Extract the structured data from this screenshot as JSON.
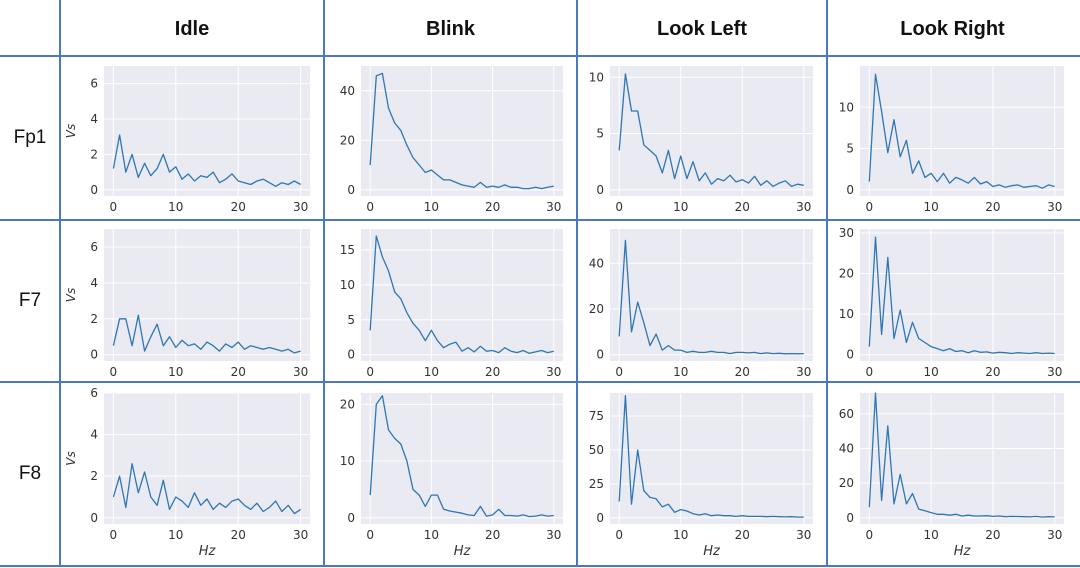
{
  "columns": [
    "Idle",
    "Blink",
    "Look Left",
    "Look Right"
  ],
  "rows": [
    "Fp1",
    "F7",
    "F8"
  ],
  "chart_data": [
    {
      "type": "line",
      "row": "Fp1",
      "column": "Idle",
      "ylabel": "Vs",
      "xlabel": "",
      "xlim": [
        0,
        30
      ],
      "ylim": [
        0,
        7
      ],
      "xticks": [
        0,
        10,
        20,
        30
      ],
      "yticks": [
        0,
        2,
        4,
        6
      ],
      "x": [
        0,
        1,
        2,
        3,
        4,
        5,
        6,
        7,
        8,
        9,
        10,
        11,
        12,
        13,
        14,
        15,
        16,
        17,
        18,
        19,
        20,
        21,
        22,
        23,
        24,
        25,
        26,
        27,
        28,
        29,
        30
      ],
      "series": [
        {
          "values": [
            1.2,
            3.1,
            1.0,
            2.0,
            0.7,
            1.5,
            0.8,
            1.2,
            2.0,
            1.0,
            1.3,
            0.6,
            0.9,
            0.5,
            0.8,
            0.7,
            1.0,
            0.4,
            0.6,
            0.9,
            0.5,
            0.4,
            0.3,
            0.5,
            0.6,
            0.4,
            0.2,
            0.4,
            0.3,
            0.5,
            0.3
          ]
        }
      ]
    },
    {
      "type": "line",
      "row": "Fp1",
      "column": "Blink",
      "ylabel": "",
      "xlabel": "",
      "xlim": [
        0,
        30
      ],
      "ylim": [
        0,
        50
      ],
      "xticks": [
        0,
        10,
        20,
        30
      ],
      "yticks": [
        0,
        20,
        40
      ],
      "x": [
        0,
        1,
        2,
        3,
        4,
        5,
        6,
        7,
        8,
        9,
        10,
        11,
        12,
        13,
        14,
        15,
        16,
        17,
        18,
        19,
        20,
        21,
        22,
        23,
        24,
        25,
        26,
        27,
        28,
        29,
        30
      ],
      "series": [
        {
          "values": [
            10,
            46,
            47,
            33,
            27,
            24,
            18,
            13,
            10,
            7,
            8,
            6,
            4,
            4,
            3,
            2,
            1.5,
            1,
            3,
            1,
            1.5,
            1,
            2,
            1,
            1,
            0.5,
            0.5,
            1,
            0.5,
            1,
            1.5
          ]
        }
      ]
    },
    {
      "type": "line",
      "row": "Fp1",
      "column": "Look Left",
      "ylabel": "",
      "xlabel": "",
      "xlim": [
        0,
        30
      ],
      "ylim": [
        0,
        11
      ],
      "xticks": [
        0,
        10,
        20,
        30
      ],
      "yticks": [
        0,
        5,
        10
      ],
      "x": [
        0,
        1,
        2,
        3,
        4,
        5,
        6,
        7,
        8,
        9,
        10,
        11,
        12,
        13,
        14,
        15,
        16,
        17,
        18,
        19,
        20,
        21,
        22,
        23,
        24,
        25,
        26,
        27,
        28,
        29,
        30
      ],
      "series": [
        {
          "values": [
            3.5,
            10.3,
            7.0,
            7.0,
            4.0,
            3.5,
            3.0,
            1.5,
            3.5,
            1.0,
            3.0,
            1.0,
            2.5,
            0.8,
            1.5,
            0.5,
            1.0,
            0.8,
            1.3,
            0.7,
            0.9,
            0.6,
            1.2,
            0.4,
            0.8,
            0.3,
            0.6,
            0.8,
            0.3,
            0.5,
            0.4
          ]
        }
      ]
    },
    {
      "type": "line",
      "row": "Fp1",
      "column": "Look Right",
      "ylabel": "",
      "xlabel": "",
      "xlim": [
        0,
        30
      ],
      "ylim": [
        0,
        15
      ],
      "xticks": [
        0,
        10,
        20,
        30
      ],
      "yticks": [
        0,
        5,
        10
      ],
      "x": [
        0,
        1,
        2,
        3,
        4,
        5,
        6,
        7,
        8,
        9,
        10,
        11,
        12,
        13,
        14,
        15,
        16,
        17,
        18,
        19,
        20,
        21,
        22,
        23,
        24,
        25,
        26,
        27,
        28,
        29,
        30
      ],
      "series": [
        {
          "values": [
            1.0,
            14.0,
            9.5,
            4.5,
            8.5,
            4.0,
            6.0,
            2.0,
            3.5,
            1.5,
            2.0,
            1.0,
            2.0,
            0.8,
            1.5,
            1.2,
            0.8,
            1.5,
            0.7,
            1.0,
            0.4,
            0.6,
            0.3,
            0.5,
            0.6,
            0.3,
            0.4,
            0.5,
            0.2,
            0.6,
            0.4
          ]
        }
      ]
    },
    {
      "type": "line",
      "row": "F7",
      "column": "Idle",
      "ylabel": "Vs",
      "xlabel": "",
      "xlim": [
        0,
        30
      ],
      "ylim": [
        0,
        7
      ],
      "xticks": [
        0,
        10,
        20,
        30
      ],
      "yticks": [
        0,
        2,
        4,
        6
      ],
      "x": [
        0,
        1,
        2,
        3,
        4,
        5,
        6,
        7,
        8,
        9,
        10,
        11,
        12,
        13,
        14,
        15,
        16,
        17,
        18,
        19,
        20,
        21,
        22,
        23,
        24,
        25,
        26,
        27,
        28,
        29,
        30
      ],
      "series": [
        {
          "values": [
            0.5,
            2.0,
            2.0,
            0.5,
            2.2,
            0.2,
            1.0,
            1.7,
            0.5,
            1.0,
            0.4,
            0.8,
            0.5,
            0.6,
            0.3,
            0.7,
            0.5,
            0.2,
            0.6,
            0.4,
            0.7,
            0.3,
            0.5,
            0.4,
            0.3,
            0.4,
            0.3,
            0.2,
            0.3,
            0.1,
            0.2
          ]
        }
      ]
    },
    {
      "type": "line",
      "row": "F7",
      "column": "Blink",
      "ylabel": "",
      "xlabel": "",
      "xlim": [
        0,
        30
      ],
      "ylim": [
        0,
        18
      ],
      "xticks": [
        0,
        10,
        20,
        30
      ],
      "yticks": [
        0,
        5,
        10,
        15
      ],
      "x": [
        0,
        1,
        2,
        3,
        4,
        5,
        6,
        7,
        8,
        9,
        10,
        11,
        12,
        13,
        14,
        15,
        16,
        17,
        18,
        19,
        20,
        21,
        22,
        23,
        24,
        25,
        26,
        27,
        28,
        29,
        30
      ],
      "series": [
        {
          "values": [
            3.5,
            17.0,
            14.0,
            12.0,
            9.0,
            8.0,
            6.0,
            4.5,
            3.5,
            2.0,
            3.5,
            2.0,
            1.0,
            1.5,
            1.8,
            0.5,
            1.0,
            0.4,
            1.2,
            0.5,
            0.6,
            0.3,
            1.0,
            0.5,
            0.3,
            0.6,
            0.2,
            0.4,
            0.6,
            0.3,
            0.5
          ]
        }
      ]
    },
    {
      "type": "line",
      "row": "F7",
      "column": "Look Left",
      "ylabel": "",
      "xlabel": "",
      "xlim": [
        0,
        30
      ],
      "ylim": [
        0,
        55
      ],
      "xticks": [
        0,
        10,
        20,
        30
      ],
      "yticks": [
        0,
        20,
        40
      ],
      "x": [
        0,
        1,
        2,
        3,
        4,
        5,
        6,
        7,
        8,
        9,
        10,
        11,
        12,
        13,
        14,
        15,
        16,
        17,
        18,
        19,
        20,
        21,
        22,
        23,
        24,
        25,
        26,
        27,
        28,
        29,
        30
      ],
      "series": [
        {
          "values": [
            8,
            50,
            10,
            23,
            14,
            4,
            9,
            2,
            4,
            2,
            2,
            1,
            1.5,
            1,
            1,
            1.5,
            1,
            1,
            0.5,
            1,
            1,
            0.8,
            1,
            0.5,
            0.8,
            0.5,
            0.6,
            0.4,
            0.5,
            0.4,
            0.5
          ]
        }
      ]
    },
    {
      "type": "line",
      "row": "F7",
      "column": "Look Right",
      "ylabel": "",
      "xlabel": "",
      "xlim": [
        0,
        30
      ],
      "ylim": [
        0,
        31
      ],
      "xticks": [
        0,
        10,
        20,
        30
      ],
      "yticks": [
        0,
        10,
        20,
        30
      ],
      "x": [
        0,
        1,
        2,
        3,
        4,
        5,
        6,
        7,
        8,
        9,
        10,
        11,
        12,
        13,
        14,
        15,
        16,
        17,
        18,
        19,
        20,
        21,
        22,
        23,
        24,
        25,
        26,
        27,
        28,
        29,
        30
      ],
      "series": [
        {
          "values": [
            2,
            29,
            5,
            24,
            4,
            11,
            3,
            8,
            4,
            3,
            2,
            1.5,
            1,
            1.5,
            0.8,
            1,
            0.5,
            1,
            0.6,
            0.7,
            0.4,
            0.6,
            0.5,
            0.3,
            0.5,
            0.4,
            0.3,
            0.5,
            0.3,
            0.4,
            0.3
          ]
        }
      ]
    },
    {
      "type": "line",
      "row": "F8",
      "column": "Idle",
      "ylabel": "Vs",
      "xlabel": "Hz",
      "xlim": [
        0,
        30
      ],
      "ylim": [
        0,
        6
      ],
      "xticks": [
        0,
        10,
        20,
        30
      ],
      "yticks": [
        0,
        2,
        4,
        6
      ],
      "x": [
        0,
        1,
        2,
        3,
        4,
        5,
        6,
        7,
        8,
        9,
        10,
        11,
        12,
        13,
        14,
        15,
        16,
        17,
        18,
        19,
        20,
        21,
        22,
        23,
        24,
        25,
        26,
        27,
        28,
        29,
        30
      ],
      "series": [
        {
          "values": [
            1.0,
            2.0,
            0.5,
            2.6,
            1.2,
            2.2,
            1.0,
            0.6,
            1.8,
            0.4,
            1.0,
            0.8,
            0.5,
            1.2,
            0.6,
            0.9,
            0.4,
            0.7,
            0.5,
            0.8,
            0.9,
            0.6,
            0.4,
            0.7,
            0.3,
            0.5,
            0.8,
            0.3,
            0.6,
            0.2,
            0.4
          ]
        }
      ]
    },
    {
      "type": "line",
      "row": "F8",
      "column": "Blink",
      "ylabel": "",
      "xlabel": "Hz",
      "xlim": [
        0,
        30
      ],
      "ylim": [
        0,
        22
      ],
      "xticks": [
        0,
        10,
        20,
        30
      ],
      "yticks": [
        0,
        10,
        20
      ],
      "x": [
        0,
        1,
        2,
        3,
        4,
        5,
        6,
        7,
        8,
        9,
        10,
        11,
        12,
        13,
        14,
        15,
        16,
        17,
        18,
        19,
        20,
        21,
        22,
        23,
        24,
        25,
        26,
        27,
        28,
        29,
        30
      ],
      "series": [
        {
          "values": [
            4,
            20,
            21.5,
            15.5,
            14,
            13,
            10,
            5,
            4,
            2,
            4,
            4,
            1.5,
            1.2,
            1.0,
            0.8,
            0.5,
            0.4,
            2,
            0.3,
            0.5,
            1.5,
            0.4,
            0.4,
            0.3,
            0.5,
            0.2,
            0.3,
            0.5,
            0.3,
            0.4
          ]
        }
      ]
    },
    {
      "type": "line",
      "row": "F8",
      "column": "Look Left",
      "ylabel": "",
      "xlabel": "Hz",
      "xlim": [
        0,
        30
      ],
      "ylim": [
        0,
        92
      ],
      "xticks": [
        0,
        10,
        20,
        30
      ],
      "yticks": [
        0,
        25,
        50,
        75
      ],
      "x": [
        0,
        1,
        2,
        3,
        4,
        5,
        6,
        7,
        8,
        9,
        10,
        11,
        12,
        13,
        14,
        15,
        16,
        17,
        18,
        19,
        20,
        21,
        22,
        23,
        24,
        25,
        26,
        27,
        28,
        29,
        30
      ],
      "series": [
        {
          "values": [
            12,
            90,
            10,
            50,
            20,
            15,
            14,
            8,
            10,
            4,
            6,
            5,
            3,
            2,
            3,
            1.5,
            2,
            1.5,
            1.5,
            1,
            1.5,
            1,
            1,
            1,
            0.8,
            1,
            0.8,
            0.6,
            0.8,
            0.5,
            0.5
          ]
        }
      ]
    },
    {
      "type": "line",
      "row": "F8",
      "column": "Look Right",
      "ylabel": "",
      "xlabel": "Hz",
      "xlim": [
        0,
        30
      ],
      "ylim": [
        0,
        72
      ],
      "xticks": [
        0,
        10,
        20,
        30
      ],
      "yticks": [
        0,
        20,
        40,
        60
      ],
      "x": [
        0,
        1,
        2,
        3,
        4,
        5,
        6,
        7,
        8,
        9,
        10,
        11,
        12,
        13,
        14,
        15,
        16,
        17,
        18,
        19,
        20,
        21,
        22,
        23,
        24,
        25,
        26,
        27,
        28,
        29,
        30
      ],
      "series": [
        {
          "values": [
            6,
            72,
            10,
            53,
            8,
            25,
            8,
            14,
            5,
            4,
            3,
            2,
            2,
            1.5,
            2,
            1,
            1.5,
            1,
            1,
            1.2,
            0.8,
            1,
            0.6,
            0.8,
            0.7,
            0.6,
            0.5,
            0.8,
            0.4,
            0.6,
            0.5
          ]
        }
      ]
    }
  ]
}
